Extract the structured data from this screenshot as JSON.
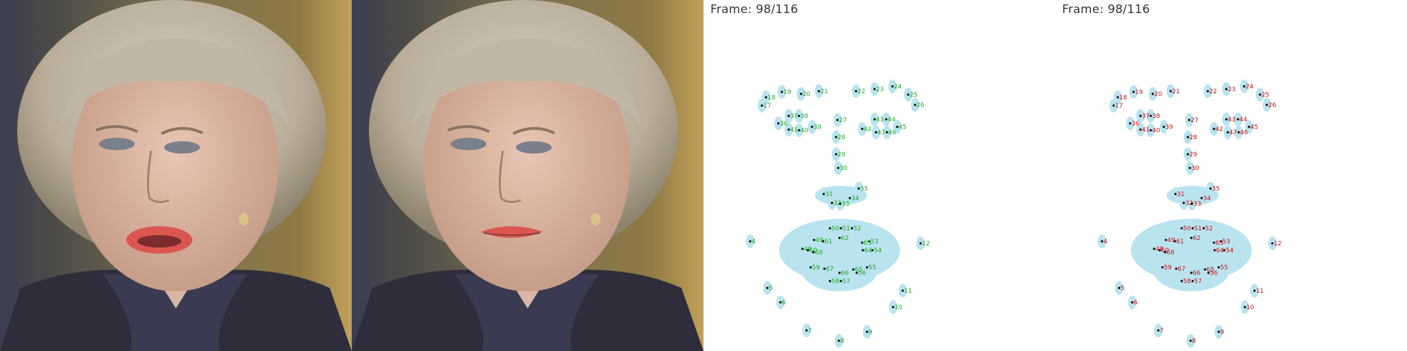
{
  "panels": {
    "p3": {
      "frame_label": "Frame: 98/116",
      "label_color": "#22aa22"
    },
    "p4": {
      "frame_label": "Frame: 98/116",
      "label_color": "#cc1111"
    }
  },
  "blob_color": "#b9e4ef",
  "landmark_ids": [
    "4",
    "5",
    "6",
    "7",
    "8",
    "9",
    "10",
    "11",
    "12",
    "17",
    "18",
    "19",
    "20",
    "21",
    "22",
    "23",
    "24",
    "25",
    "26",
    "27",
    "28",
    "29",
    "30",
    "31",
    "32",
    "33",
    "34",
    "35",
    "36",
    "37",
    "38",
    "39",
    "40",
    "41",
    "42",
    "43",
    "44",
    "45",
    "46",
    "47",
    "48",
    "49",
    "50",
    "51",
    "52",
    "53",
    "54",
    "55",
    "56",
    "57",
    "58",
    "59",
    "60",
    "61",
    "62",
    "63",
    "64",
    "65",
    "66",
    "67",
    "68"
  ]
}
